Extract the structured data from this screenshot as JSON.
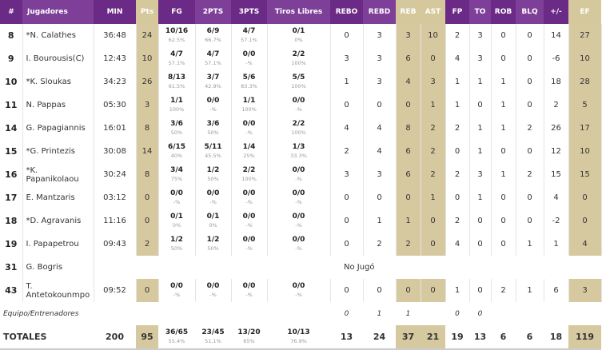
{
  "colors": {
    "header_purple": "#6b2a86",
    "header_purple_alt": "#7d3f98",
    "highlight_gold": "#d6c9a0"
  },
  "headers": [
    "#",
    "Jugadores",
    "MIN",
    "Pts",
    "FG",
    "2PTS",
    "3PTS",
    "Tiros Libres",
    "REBO",
    "REBD",
    "REB",
    "AST",
    "FP",
    "TO",
    "ROB",
    "BLQ",
    "+/-",
    "EF"
  ],
  "players": [
    {
      "num": "8",
      "name": "*N. Calathes",
      "min": "36:48",
      "pts": "24",
      "fg": [
        "10/16",
        "62.5%"
      ],
      "p2": [
        "6/9",
        "66.7%"
      ],
      "p3": [
        "4/7",
        "57.1%"
      ],
      "ft": [
        "0/1",
        "0%"
      ],
      "rest": [
        "0",
        "3",
        "3",
        "10",
        "2",
        "3",
        "0",
        "0",
        "14",
        "27"
      ]
    },
    {
      "num": "9",
      "name": "I. Bourousis(C)",
      "min": "12:43",
      "pts": "10",
      "fg": [
        "4/7",
        "57.1%"
      ],
      "p2": [
        "4/7",
        "57.1%"
      ],
      "p3": [
        "0/0",
        "-%"
      ],
      "ft": [
        "2/2",
        "100%"
      ],
      "rest": [
        "3",
        "3",
        "6",
        "0",
        "4",
        "3",
        "0",
        "0",
        "-6",
        "10"
      ]
    },
    {
      "num": "10",
      "name": "*K. Sloukas",
      "min": "34:23",
      "pts": "26",
      "fg": [
        "8/13",
        "61.5%"
      ],
      "p2": [
        "3/7",
        "42.9%"
      ],
      "p3": [
        "5/6",
        "83.3%"
      ],
      "ft": [
        "5/5",
        "100%"
      ],
      "rest": [
        "1",
        "3",
        "4",
        "3",
        "1",
        "1",
        "1",
        "0",
        "18",
        "28"
      ]
    },
    {
      "num": "11",
      "name": "N. Pappas",
      "min": "05:30",
      "pts": "3",
      "fg": [
        "1/1",
        "100%"
      ],
      "p2": [
        "0/0",
        "-%"
      ],
      "p3": [
        "1/1",
        "100%"
      ],
      "ft": [
        "0/0",
        "-%"
      ],
      "rest": [
        "0",
        "0",
        "0",
        "1",
        "1",
        "0",
        "1",
        "0",
        "2",
        "5"
      ]
    },
    {
      "num": "14",
      "name": "G. Papagiannis",
      "min": "16:01",
      "pts": "8",
      "fg": [
        "3/6",
        "50%"
      ],
      "p2": [
        "3/6",
        "50%"
      ],
      "p3": [
        "0/0",
        "-%"
      ],
      "ft": [
        "2/2",
        "100%"
      ],
      "rest": [
        "4",
        "4",
        "8",
        "2",
        "2",
        "1",
        "1",
        "2",
        "26",
        "17"
      ]
    },
    {
      "num": "15",
      "name": "*G. Printezis",
      "min": "30:08",
      "pts": "14",
      "fg": [
        "6/15",
        "40%"
      ],
      "p2": [
        "5/11",
        "45.5%"
      ],
      "p3": [
        "1/4",
        "25%"
      ],
      "ft": [
        "1/3",
        "33.3%"
      ],
      "rest": [
        "2",
        "4",
        "6",
        "2",
        "0",
        "1",
        "0",
        "0",
        "12",
        "10"
      ]
    },
    {
      "num": "16",
      "name": "*K. Papanikolaou",
      "min": "30:24",
      "pts": "8",
      "fg": [
        "3/4",
        "75%"
      ],
      "p2": [
        "1/2",
        "50%"
      ],
      "p3": [
        "2/2",
        "100%"
      ],
      "ft": [
        "0/0",
        "-%"
      ],
      "rest": [
        "3",
        "3",
        "6",
        "2",
        "2",
        "3",
        "1",
        "2",
        "15",
        "15"
      ]
    },
    {
      "num": "17",
      "name": "E. Mantzaris",
      "min": "03:12",
      "pts": "0",
      "fg": [
        "0/0",
        "-%"
      ],
      "p2": [
        "0/0",
        "-%"
      ],
      "p3": [
        "0/0",
        "-%"
      ],
      "ft": [
        "0/0",
        "-%"
      ],
      "rest": [
        "0",
        "0",
        "0",
        "1",
        "0",
        "1",
        "0",
        "0",
        "4",
        "0"
      ]
    },
    {
      "num": "18",
      "name": "*D. Agravanis",
      "min": "11:16",
      "pts": "0",
      "fg": [
        "0/1",
        "0%"
      ],
      "p2": [
        "0/1",
        "0%"
      ],
      "p3": [
        "0/0",
        "-%"
      ],
      "ft": [
        "0/0",
        "-%"
      ],
      "rest": [
        "0",
        "1",
        "1",
        "0",
        "2",
        "0",
        "0",
        "0",
        "-2",
        "0"
      ]
    },
    {
      "num": "19",
      "name": "I. Papapetrou",
      "min": "09:43",
      "pts": "2",
      "fg": [
        "1/2",
        "50%"
      ],
      "p2": [
        "1/2",
        "50%"
      ],
      "p3": [
        "0/0",
        "-%"
      ],
      "ft": [
        "0/0",
        "-%"
      ],
      "rest": [
        "0",
        "2",
        "2",
        "0",
        "4",
        "0",
        "0",
        "1",
        "1",
        "4"
      ]
    },
    {
      "num": "31",
      "name": "G. Bogris",
      "no_play": "No Jugó"
    },
    {
      "num": "43",
      "name": "T. Antetokounmpo",
      "min": "09:52",
      "pts": "0",
      "fg": [
        "0/0",
        "-%"
      ],
      "p2": [
        "0/0",
        "-%"
      ],
      "p3": [
        "0/0",
        "-%"
      ],
      "ft": [
        "0/0",
        "-%"
      ],
      "rest": [
        "0",
        "0",
        "0",
        "0",
        "1",
        "0",
        "2",
        "1",
        "6",
        "3"
      ]
    }
  ],
  "team": {
    "label": "Equipo/Entrenadores",
    "rest": [
      "0",
      "1",
      "1",
      "",
      "0",
      "0",
      "",
      "",
      "",
      ""
    ]
  },
  "totals": {
    "label": "TOTALES",
    "min": "200",
    "pts": "95",
    "fg": [
      "36/65",
      "55.4%"
    ],
    "p2": [
      "23/45",
      "51.1%"
    ],
    "p3": [
      "13/20",
      "65%"
    ],
    "ft": [
      "10/13",
      "76.9%"
    ],
    "rest": [
      "13",
      "24",
      "37",
      "21",
      "19",
      "13",
      "6",
      "6",
      "18",
      "119"
    ]
  }
}
